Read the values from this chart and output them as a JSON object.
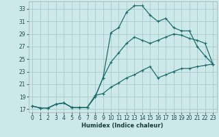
{
  "xlabel": "Humidex (Indice chaleur)",
  "background_color": "#cce8e8",
  "grid_color": "#aacece",
  "line_color": "#1a6b6b",
  "xlim": [
    -0.5,
    23.5
  ],
  "ylim": [
    16.5,
    34.2
  ],
  "xticks": [
    0,
    1,
    2,
    3,
    4,
    5,
    6,
    7,
    8,
    9,
    10,
    11,
    12,
    13,
    14,
    15,
    16,
    17,
    18,
    19,
    20,
    21,
    22,
    23
  ],
  "yticks": [
    17,
    19,
    21,
    23,
    25,
    27,
    29,
    31,
    33
  ],
  "line1_x": [
    0,
    1,
    2,
    3,
    4,
    5,
    6,
    7,
    8,
    9,
    10,
    11,
    12,
    13,
    14,
    15,
    16,
    17,
    18,
    19,
    20,
    21,
    22,
    23
  ],
  "line1_y": [
    17.5,
    17.2,
    17.2,
    17.8,
    18.0,
    17.3,
    17.3,
    17.3,
    19.0,
    22.0,
    29.2,
    30.0,
    32.5,
    33.5,
    33.5,
    32.0,
    31.0,
    31.5,
    30.0,
    29.5,
    29.5,
    27.0,
    25.5,
    24.2
  ],
  "line2_x": [
    0,
    1,
    2,
    3,
    4,
    5,
    6,
    7,
    8,
    9,
    10,
    11,
    12,
    13,
    14,
    15,
    16,
    17,
    18,
    19,
    20,
    21,
    22,
    23
  ],
  "line2_y": [
    17.5,
    17.2,
    17.2,
    17.8,
    18.0,
    17.3,
    17.3,
    17.3,
    19.0,
    22.0,
    24.5,
    26.0,
    27.5,
    28.5,
    28.0,
    27.5,
    28.0,
    28.5,
    29.0,
    28.8,
    28.3,
    28.0,
    27.5,
    24.2
  ],
  "line3_x": [
    0,
    1,
    2,
    3,
    4,
    5,
    6,
    7,
    8,
    9,
    10,
    11,
    12,
    13,
    14,
    15,
    16,
    17,
    18,
    19,
    20,
    21,
    22,
    23
  ],
  "line3_y": [
    17.5,
    17.2,
    17.2,
    17.8,
    18.0,
    17.3,
    17.3,
    17.3,
    19.2,
    19.5,
    20.5,
    21.2,
    22.0,
    22.5,
    23.2,
    23.8,
    22.0,
    22.5,
    23.0,
    23.5,
    23.5,
    23.8,
    24.0,
    24.2
  ]
}
